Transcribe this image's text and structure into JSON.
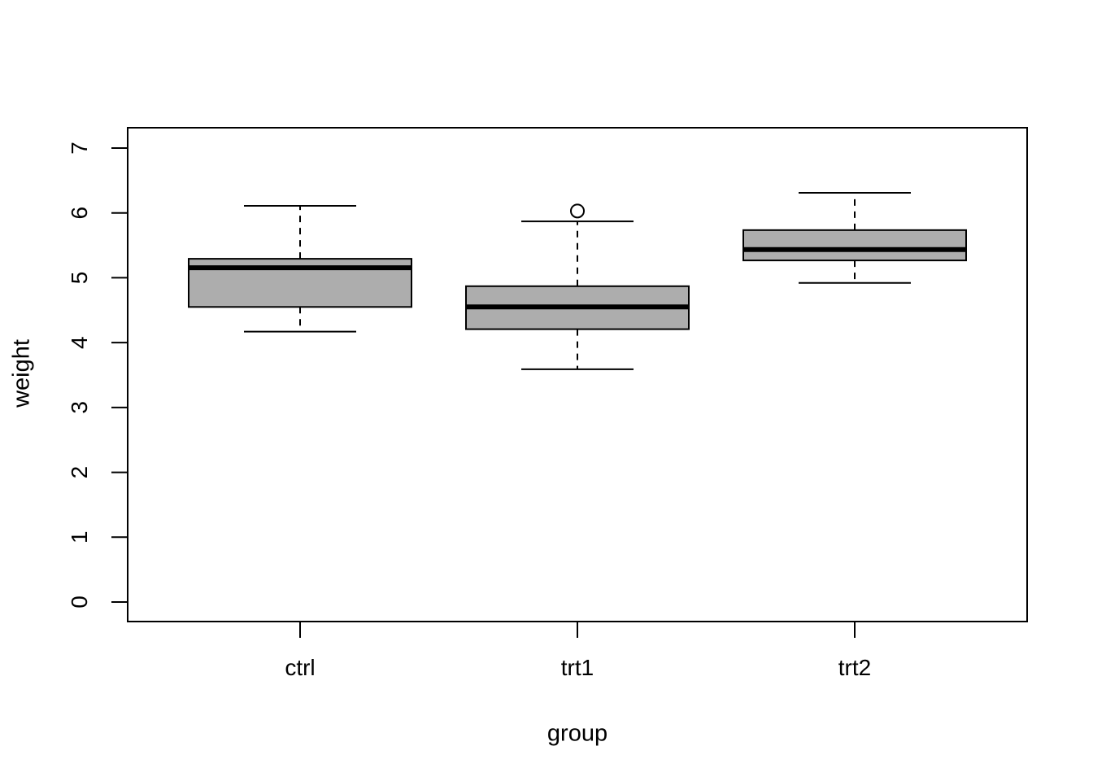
{
  "chart_data": {
    "type": "boxplot",
    "title": "",
    "xlabel": "group",
    "ylabel": "weight",
    "categories": [
      "ctrl",
      "trt1",
      "trt2"
    ],
    "ylim": [
      0,
      7
    ],
    "yticks": [
      0,
      1,
      2,
      3,
      4,
      5,
      6,
      7
    ],
    "grid": false,
    "legend": "none",
    "colors": {
      "box_fill": "#adadad",
      "stroke": "#000000",
      "background": "#ffffff"
    },
    "series": [
      {
        "name": "ctrl",
        "whisker_low": 4.17,
        "q1": 4.55,
        "median": 5.155,
        "q3": 5.2925,
        "whisker_high": 6.11,
        "outliers": []
      },
      {
        "name": "trt1",
        "whisker_low": 3.59,
        "q1": 4.2075,
        "median": 4.55,
        "q3": 4.87,
        "whisker_high": 5.87,
        "outliers": [
          6.03
        ]
      },
      {
        "name": "trt2",
        "whisker_low": 4.92,
        "q1": 5.2675,
        "median": 5.435,
        "q3": 5.735,
        "whisker_high": 6.31,
        "outliers": []
      }
    ]
  }
}
